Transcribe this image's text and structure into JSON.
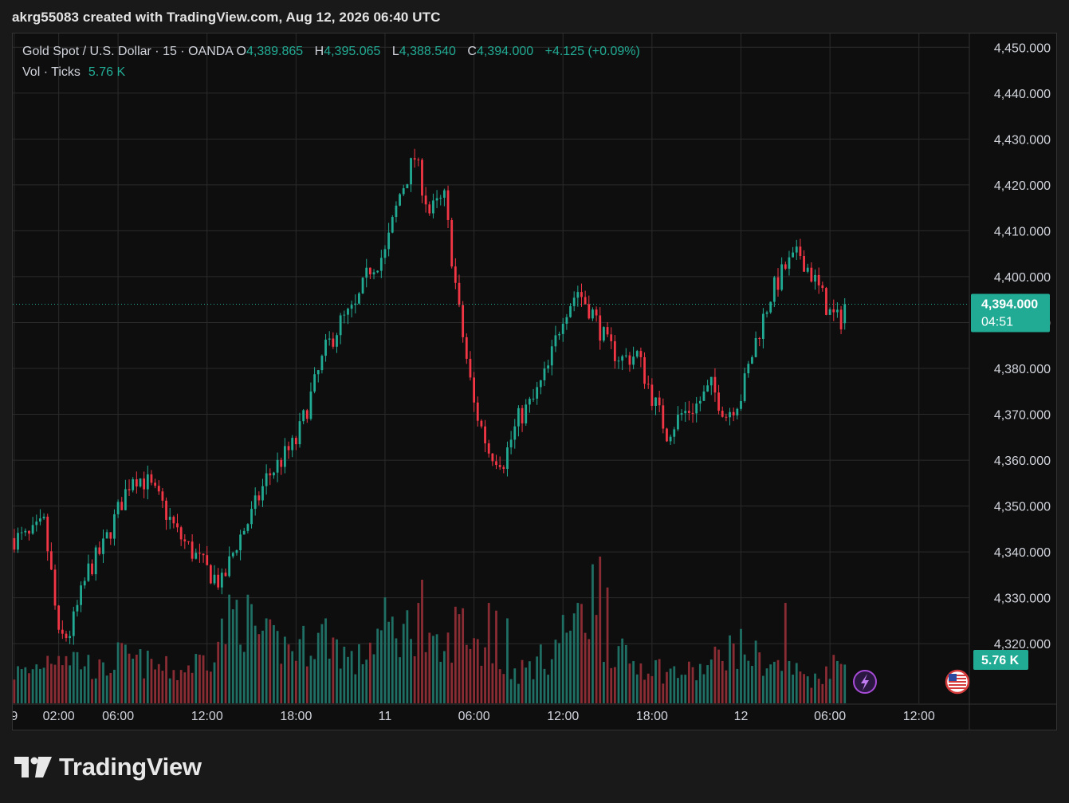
{
  "header": {
    "credit": "akrg55083 created with TradingView.com, Aug 12, 2026 06:40 UTC"
  },
  "legend": {
    "symbol": "Gold Spot / U.S. Dollar · 15 · OANDA",
    "open_label": "O",
    "open": "4,389.865",
    "high_label": "H",
    "high": "4,395.065",
    "low_label": "L",
    "low": "4,388.540",
    "close_label": "C",
    "close": "4,394.000",
    "change": "+4.125 (+0.09%)",
    "volume_label": "Vol · Ticks",
    "volume": "5.76 K"
  },
  "price_badge": {
    "price": "4,394.000",
    "countdown": "04:51"
  },
  "volume_badge": "5.76 K",
  "event_icons": [
    "lightning-event-icon",
    "us-flag-event-icon"
  ],
  "footer": {
    "logo_text": "TradingView"
  },
  "colors": {
    "up": "#22ab94",
    "down": "#f23645",
    "up_volume": "#1f6f64",
    "down_volume": "#8a2c33",
    "background": "#0e0e0e",
    "grid": "#2b2b2b",
    "axis_text": "#d1d4dc"
  },
  "chart_data": {
    "type": "candlestick",
    "title": "Gold Spot / U.S. Dollar · 15 · OANDA",
    "y_ticks": [
      4320,
      4330,
      4340,
      4350,
      4360,
      4370,
      4380,
      4390,
      4400,
      4410,
      4420,
      4430,
      4440,
      4450
    ],
    "y_tick_labels": [
      "4,320.000",
      "4,330.000",
      "4,340.000",
      "4,350.000",
      "4,360.000",
      "4,370.000",
      "4,380.000",
      "4,390.000",
      "4,400.000",
      "4,410.000",
      "4,420.000",
      "4,430.000",
      "4,440.000",
      "4,450.000"
    ],
    "ylim": [
      4307,
      4453
    ],
    "x_tick_labels": [
      "9",
      "02:00",
      "06:00",
      "12:00",
      "18:00",
      "11",
      "06:00",
      "12:00",
      "18:00",
      "12",
      "06:00",
      "12:00"
    ],
    "x_tick_hours": [
      -1,
      2,
      6,
      12,
      18,
      24,
      30,
      36,
      42,
      48,
      54,
      60
    ],
    "xlim_hours": [
      -1.1,
      63.4
    ],
    "last_price": 4394.0,
    "bar_interval_hours": 0.25,
    "series_anchors": [
      [
        0,
        4343
      ],
      [
        1,
        4346
      ],
      [
        1.5,
        4335
      ],
      [
        2,
        4321
      ],
      [
        2.7,
        4322
      ],
      [
        3,
        4325
      ],
      [
        4,
        4336
      ],
      [
        5,
        4341
      ],
      [
        6,
        4349
      ],
      [
        7,
        4357
      ],
      [
        8,
        4355
      ],
      [
        9,
        4350
      ],
      [
        10,
        4344
      ],
      [
        11,
        4340
      ],
      [
        12,
        4336
      ],
      [
        13,
        4333
      ],
      [
        14,
        4342
      ],
      [
        15,
        4348
      ],
      [
        16,
        4356
      ],
      [
        17,
        4360
      ],
      [
        18,
        4364
      ],
      [
        19,
        4374
      ],
      [
        20,
        4384
      ],
      [
        21,
        4390
      ],
      [
        22,
        4393
      ],
      [
        23,
        4402
      ],
      [
        24,
        4405
      ],
      [
        25,
        4418
      ],
      [
        26,
        4426
      ],
      [
        27,
        4414
      ],
      [
        28,
        4417
      ],
      [
        29,
        4392
      ],
      [
        30,
        4372
      ],
      [
        31,
        4362
      ],
      [
        32,
        4360
      ],
      [
        33,
        4369
      ],
      [
        34,
        4373
      ],
      [
        35,
        4380
      ],
      [
        36,
        4392
      ],
      [
        37,
        4397
      ],
      [
        38,
        4392
      ],
      [
        39,
        4385
      ],
      [
        40,
        4382
      ],
      [
        41,
        4383
      ],
      [
        42,
        4374
      ],
      [
        43,
        4366
      ],
      [
        44,
        4370
      ],
      [
        45,
        4372
      ],
      [
        46,
        4376
      ],
      [
        47,
        4370
      ],
      [
        48,
        4374
      ],
      [
        49,
        4386
      ],
      [
        50,
        4396
      ],
      [
        51,
        4402
      ],
      [
        52,
        4405
      ],
      [
        53,
        4399
      ],
      [
        54,
        4392
      ],
      [
        54.7,
        4390
      ],
      [
        55.0,
        4394
      ]
    ],
    "volume_anchors": [
      [
        0,
        4
      ],
      [
        2,
        7
      ],
      [
        3,
        6
      ],
      [
        5,
        4
      ],
      [
        6,
        6
      ],
      [
        8,
        5
      ],
      [
        10,
        4
      ],
      [
        12,
        6
      ],
      [
        13,
        9
      ],
      [
        14,
        12
      ],
      [
        16,
        8
      ],
      [
        18,
        7
      ],
      [
        20,
        9
      ],
      [
        21,
        7
      ],
      [
        22,
        5
      ],
      [
        24,
        10
      ],
      [
        25,
        9
      ],
      [
        26,
        10
      ],
      [
        27,
        7
      ],
      [
        28,
        6
      ],
      [
        29,
        11
      ],
      [
        30,
        8
      ],
      [
        31,
        6
      ],
      [
        32,
        5
      ],
      [
        33,
        4
      ],
      [
        34,
        5
      ],
      [
        35,
        6
      ],
      [
        36,
        9
      ],
      [
        37,
        12
      ],
      [
        38,
        10
      ],
      [
        39,
        8
      ],
      [
        40,
        6
      ],
      [
        41,
        5
      ],
      [
        42,
        5
      ],
      [
        43,
        4
      ],
      [
        44,
        4
      ],
      [
        45,
        4
      ],
      [
        46,
        5
      ],
      [
        47,
        7
      ],
      [
        48,
        7
      ],
      [
        49,
        6
      ],
      [
        50,
        5
      ],
      [
        52,
        4
      ],
      [
        53,
        3
      ],
      [
        54,
        5
      ],
      [
        55,
        5
      ]
    ],
    "volume_axis_max": 16,
    "volume_spikes": [
      [
        26.3,
        13
      ],
      [
        26.6,
        16
      ],
      [
        31.0,
        13
      ],
      [
        38.1,
        18
      ],
      [
        38.4,
        19
      ],
      [
        37.0,
        13
      ],
      [
        39.1,
        15
      ],
      [
        51.0,
        13
      ],
      [
        15.9,
        11
      ],
      [
        31.5,
        12
      ],
      [
        32.2,
        11
      ]
    ]
  }
}
